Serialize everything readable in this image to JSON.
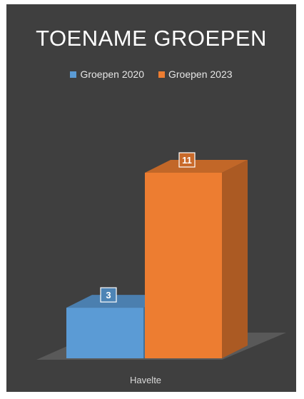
{
  "chart_data": {
    "type": "bar",
    "title": "TOENAME GROEPEN",
    "categories": [
      "Havelte"
    ],
    "series": [
      {
        "name": "Groepen 2020",
        "values": [
          3
        ],
        "color": "#5b9bd5"
      },
      {
        "name": "Groepen 2023",
        "values": [
          11
        ],
        "color": "#ed7d31"
      }
    ],
    "ylim": [
      0,
      11
    ],
    "grid": false,
    "legend": "top",
    "three_d": true
  }
}
